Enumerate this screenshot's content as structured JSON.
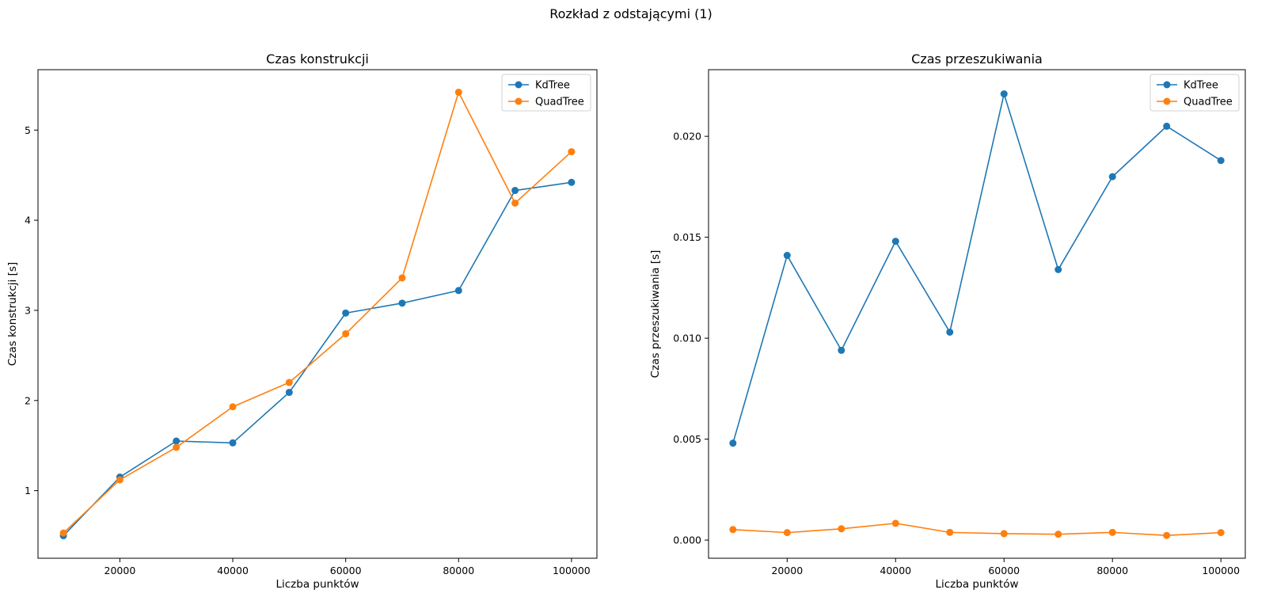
{
  "figure": {
    "suptitle": "Rozkład z odstającymi (1)"
  },
  "chart_data": [
    {
      "type": "line",
      "title": "Czas konstrukcji",
      "xlabel": "Liczba punktów",
      "ylabel": "Czas konstrukcji [s]",
      "x": [
        10000,
        20000,
        30000,
        40000,
        50000,
        60000,
        70000,
        80000,
        90000,
        100000
      ],
      "xlim": [
        5500,
        104500
      ],
      "ylim": [
        0.25,
        5.67
      ],
      "xticks": [
        20000,
        40000,
        60000,
        80000,
        100000
      ],
      "xtick_labels": [
        "20000",
        "40000",
        "60000",
        "80000",
        "100000"
      ],
      "yticks": [
        1,
        2,
        3,
        4,
        5
      ],
      "ytick_labels": [
        "1",
        "2",
        "3",
        "4",
        "5"
      ],
      "grid": false,
      "legend_position": "top-right",
      "series": [
        {
          "name": "KdTree",
          "color": "#1f77b4",
          "marker": "circle",
          "values": [
            0.5,
            1.15,
            1.55,
            1.53,
            2.09,
            2.97,
            3.08,
            3.22,
            4.33,
            4.42
          ]
        },
        {
          "name": "QuadTree",
          "color": "#ff7f0e",
          "marker": "circle",
          "values": [
            0.53,
            1.12,
            1.48,
            1.93,
            2.2,
            2.74,
            3.36,
            5.42,
            4.19,
            4.76
          ]
        }
      ]
    },
    {
      "type": "line",
      "title": "Czas przeszukiwania",
      "xlabel": "Liczba punktów",
      "ylabel": "Czas przeszukiwania [s]",
      "x": [
        10000,
        20000,
        30000,
        40000,
        50000,
        60000,
        70000,
        80000,
        90000,
        100000
      ],
      "xlim": [
        5500,
        104500
      ],
      "ylim": [
        -0.0009,
        0.0233
      ],
      "xticks": [
        20000,
        40000,
        60000,
        80000,
        100000
      ],
      "xtick_labels": [
        "20000",
        "40000",
        "60000",
        "80000",
        "100000"
      ],
      "yticks": [
        0.0,
        0.005,
        0.01,
        0.015,
        0.02
      ],
      "ytick_labels": [
        "0.000",
        "0.005",
        "0.010",
        "0.015",
        "0.020"
      ],
      "grid": false,
      "legend_position": "top-right",
      "series": [
        {
          "name": "KdTree",
          "color": "#1f77b4",
          "marker": "circle",
          "values": [
            0.0048,
            0.0141,
            0.0094,
            0.0148,
            0.0103,
            0.0221,
            0.0134,
            0.018,
            0.0205,
            0.0188
          ]
        },
        {
          "name": "QuadTree",
          "color": "#ff7f0e",
          "marker": "circle",
          "values": [
            0.00052,
            0.00037,
            0.00056,
            0.00083,
            0.00038,
            0.00032,
            0.00029,
            0.00038,
            0.00023,
            0.00037
          ]
        }
      ]
    }
  ]
}
